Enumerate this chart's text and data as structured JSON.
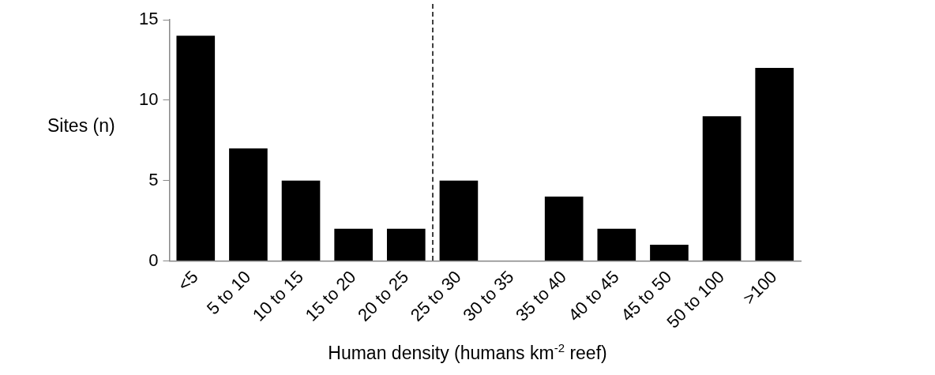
{
  "chart_data": {
    "type": "bar",
    "xlabel": "Human density (humans km$^{-2}$ reef)",
    "ylabel": "Sites (n)",
    "categories": [
      "<5",
      "5 to 10",
      "10 to 15",
      "15 to 20",
      "20 to 25",
      "25 to 30",
      "30 to 35",
      "35 to 40",
      "40 to 45",
      "45 to 50",
      "50 to 100",
      ">100"
    ],
    "values": [
      14,
      7,
      5,
      2,
      2,
      5,
      0,
      4,
      2,
      1,
      9,
      12
    ],
    "color": "#000000",
    "ylim": [
      0,
      15
    ],
    "yticks": [
      0,
      5,
      10,
      15
    ],
    "grid": false,
    "legend": false
  }
}
